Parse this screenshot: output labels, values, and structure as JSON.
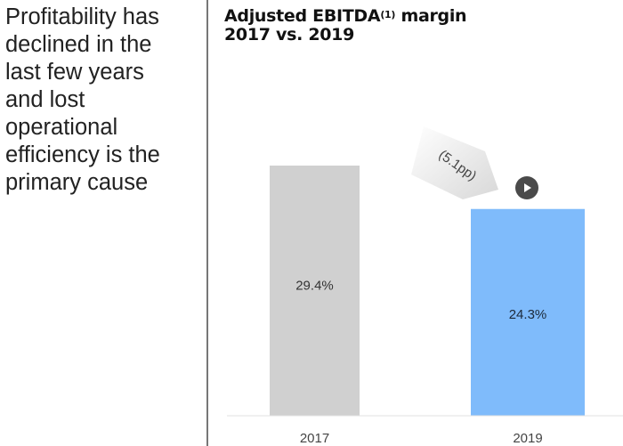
{
  "left_panel": {
    "lines": [
      "Profitability has",
      "declined in the",
      "last few years",
      "and lost",
      "operational",
      "efficiency is the",
      "primary cause"
    ]
  },
  "chart_data": {
    "type": "bar",
    "title_main": "Adjusted EBITDA",
    "title_footnote": "(1)",
    "title_suffix": " margin",
    "subtitle": "2017 vs. 2019",
    "categories": [
      "2017",
      "2019"
    ],
    "values": [
      29.4,
      24.3
    ],
    "value_labels": [
      "29.4%",
      "24.3%"
    ],
    "colors": [
      "#d0d0d0",
      "#7fbbfb"
    ],
    "annotation": "(5.1pp)",
    "ylim": [
      0,
      40
    ],
    "grid": false,
    "xlabel": "",
    "ylabel": ""
  },
  "controls": {
    "play_icon": "play-icon"
  }
}
